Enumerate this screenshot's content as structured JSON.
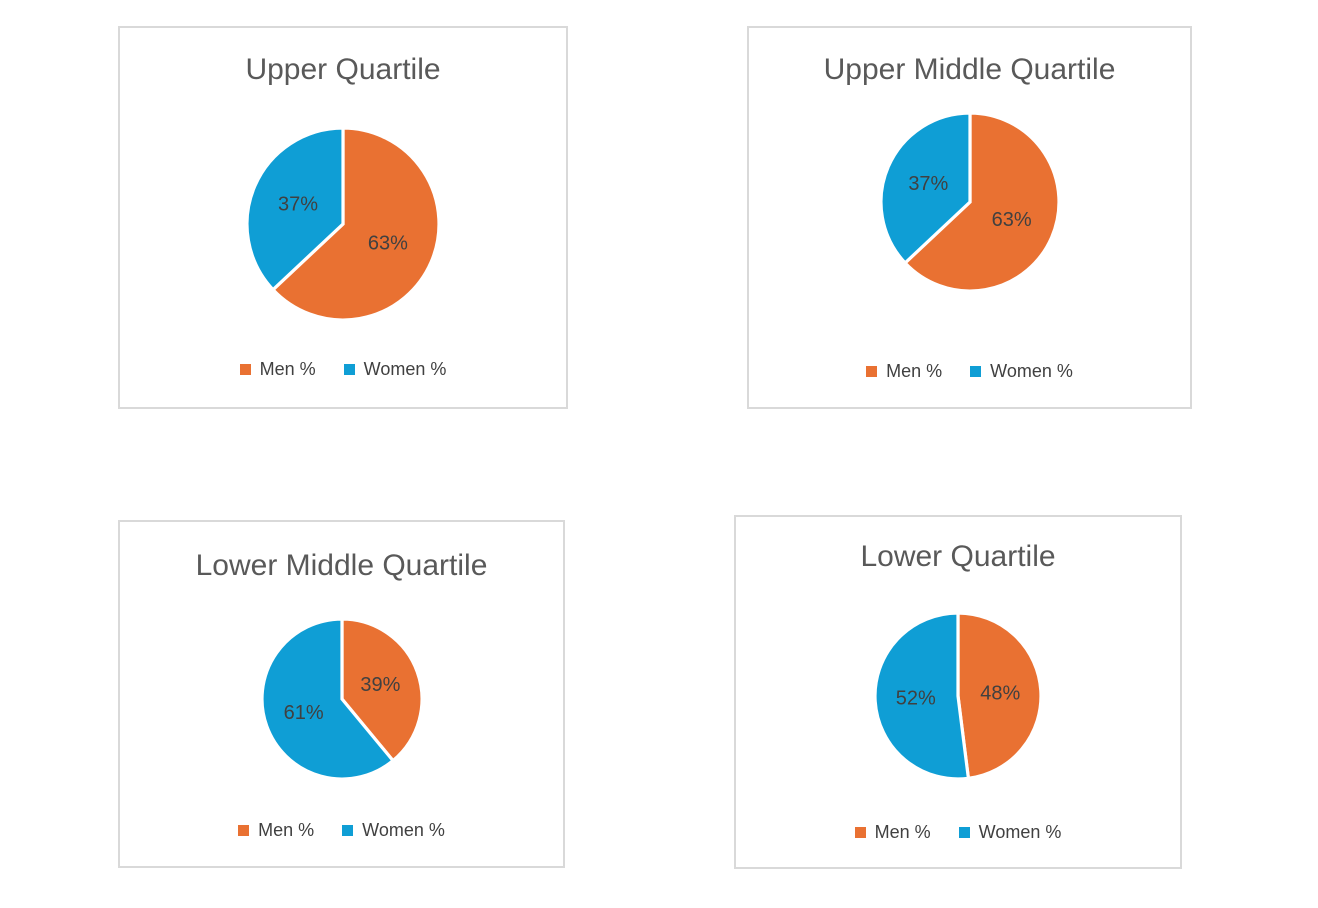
{
  "page": {
    "background_color": "#FFFFFF"
  },
  "theme": {
    "card_border_color": "#D9D9D9",
    "title_color": "#595959",
    "data_label_color": "#404040",
    "legend_text_color": "#404040",
    "men_color": "#E97132",
    "women_color": "#0F9ED5",
    "slice_divider_color": "#FFFFFF"
  },
  "chart_data": [
    {
      "type": "pie",
      "title": "Upper Quartile",
      "categories": [
        "Men %",
        "Women %"
      ],
      "values": [
        63,
        37
      ],
      "data_labels": [
        "63%",
        "37%"
      ],
      "colors": [
        "#E97132",
        "#0F9ED5"
      ],
      "legend_position": "bottom",
      "start_angle_deg": 0,
      "clockwise": true
    },
    {
      "type": "pie",
      "title": "Upper Middle Quartile",
      "categories": [
        "Men %",
        "Women %"
      ],
      "values": [
        63,
        37
      ],
      "data_labels": [
        "63%",
        "37%"
      ],
      "colors": [
        "#E97132",
        "#0F9ED5"
      ],
      "legend_position": "bottom",
      "start_angle_deg": 0,
      "clockwise": true
    },
    {
      "type": "pie",
      "title": "Lower Middle Quartile",
      "categories": [
        "Men %",
        "Women %"
      ],
      "values": [
        39,
        61
      ],
      "data_labels": [
        "39%",
        "61%"
      ],
      "colors": [
        "#E97132",
        "#0F9ED5"
      ],
      "legend_position": "bottom",
      "start_angle_deg": 0,
      "clockwise": true
    },
    {
      "type": "pie",
      "title": "Lower Quartile",
      "categories": [
        "Men %",
        "Women %"
      ],
      "values": [
        48,
        52
      ],
      "data_labels": [
        "48%",
        "52%"
      ],
      "colors": [
        "#E97132",
        "#0F9ED5"
      ],
      "legend_position": "bottom",
      "start_angle_deg": 0,
      "clockwise": true
    }
  ]
}
